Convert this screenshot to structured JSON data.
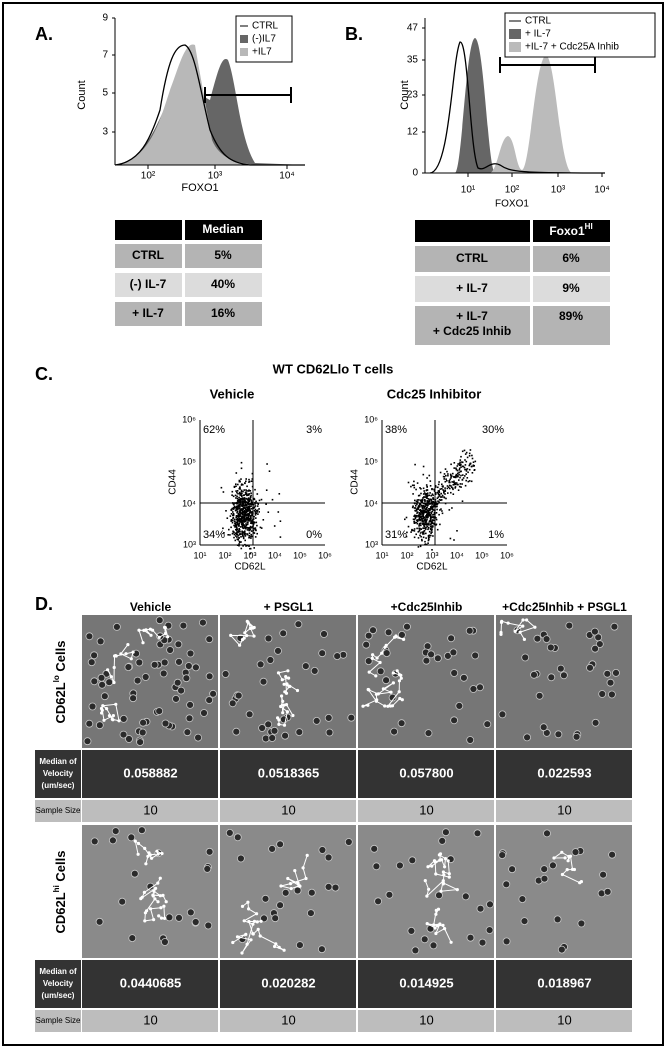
{
  "panel_a": {
    "label": "A.",
    "y_axis_label": "Count",
    "x_axis_label": "FOXO1",
    "y_ticks": [
      9,
      7,
      5,
      3
    ],
    "x_ticks": [
      "10²",
      "10³",
      "10⁴"
    ],
    "legend": [
      "CTRL",
      "(-)IL7",
      "+IL7"
    ],
    "table": {
      "header": "Median",
      "rows": [
        [
          "CTRL",
          "5%"
        ],
        [
          "(-) IL-7",
          "40%"
        ],
        [
          "+ IL-7",
          "16%"
        ]
      ]
    }
  },
  "panel_b": {
    "label": "B.",
    "y_axis_label": "Count",
    "x_axis_label": "FOXO1",
    "y_ticks": [
      47,
      35,
      23,
      12,
      0
    ],
    "x_ticks": [
      "10¹",
      "10²",
      "10³",
      "10⁴"
    ],
    "legend": [
      "CTRL",
      "+ IL-7",
      "+IL-7 + Cdc25A Inhib"
    ],
    "table": {
      "header": {
        "base": "Foxo1",
        "sup": "HI"
      },
      "rows": [
        [
          "CTRL",
          "6%"
        ],
        [
          "+ IL-7",
          "9%"
        ],
        [
          [
            "+ IL-7",
            "+ Cdc25 Inhib"
          ],
          "89%"
        ]
      ]
    }
  },
  "panel_c": {
    "label": "C.",
    "title": "WT CD62Llo T cells",
    "y_axis_label": "CD44",
    "x_axis_label": "CD62L",
    "y_ticks": [
      "10⁶",
      "10⁵",
      "10⁴",
      "10³"
    ],
    "x_ticks": [
      "10¹",
      "10²",
      "10³",
      "10⁴",
      "10⁵",
      "10⁶"
    ],
    "plots": [
      {
        "title": "Vehicle",
        "quadrants": [
          "62%",
          "3%",
          "34%",
          "0%"
        ]
      },
      {
        "title": "Cdc25 Inhibitor",
        "quadrants": [
          "38%",
          "30%",
          "31%",
          "1%"
        ]
      }
    ]
  },
  "panel_d": {
    "label": "D.",
    "columns": [
      "Vehicle",
      "+ PSGL1",
      "+Cdc25Inhib",
      "+Cdc25Inhib + PSGL1"
    ],
    "groups": [
      {
        "row_label": {
          "base": "CD62L",
          "sup": "lo",
          "rest": " Cells"
        },
        "velocity_label": [
          "Median of",
          "Velocity",
          "(um/sec)"
        ],
        "velocity": [
          "0.058882",
          "0.0518365",
          "0.057800",
          "0.022593"
        ],
        "sample_size_label": "Sample Size",
        "sample_size": [
          10,
          10,
          10,
          10
        ]
      },
      {
        "row_label": {
          "base": "CD62L",
          "sup": "hi",
          "rest": " Cells"
        },
        "velocity_label": [
          "Median of",
          "Velocity",
          "(um/sec)"
        ],
        "velocity": [
          "0.0440685",
          "0.020282",
          "0.014925",
          "0.018967"
        ],
        "sample_size_label": "Sample Size",
        "sample_size": [
          10,
          10,
          10,
          10
        ]
      }
    ]
  }
}
